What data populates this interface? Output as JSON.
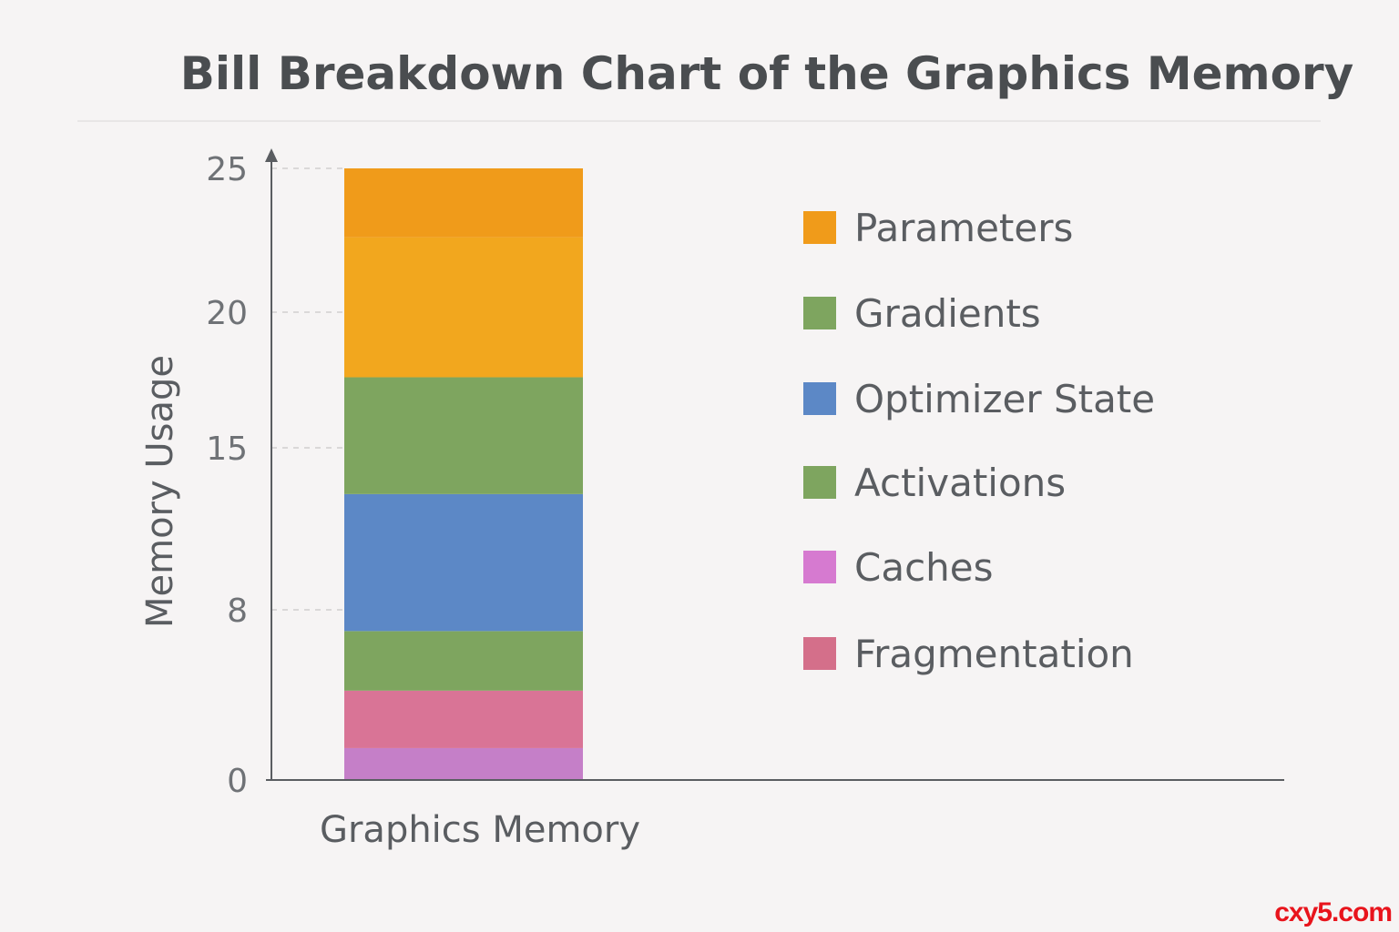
{
  "chart_data": {
    "type": "bar",
    "stacked": true,
    "title": "Bill Breakdown Chart of the Graphics Memory",
    "xlabel": "",
    "ylabel": "Memory Usage",
    "categories": [
      "Graphics Memory"
    ],
    "y_ticks": [
      "0",
      "8",
      "15",
      "20",
      "25"
    ],
    "grid": "horizontal dashed",
    "legend_position": "right",
    "segments_bottom_to_top": [
      {
        "name": "Caches",
        "from": 0,
        "to": 1.5,
        "color": "#c57fc8"
      },
      {
        "name": "Fragmentation",
        "from": 1.5,
        "to": 4.2,
        "color": "#d97496"
      },
      {
        "name": "Activations",
        "from": 4.2,
        "to": 7.0,
        "color": "#7ea55f"
      },
      {
        "name": "Optimizer State",
        "from": 7.0,
        "to": 13.0,
        "color": "#5c88c6"
      },
      {
        "name": "Gradients",
        "from": 13.0,
        "to": 17.6,
        "color": "#7ea55f"
      },
      {
        "name": "Parameters",
        "from": 17.6,
        "to": 22.6,
        "color": "#f2a71e"
      },
      {
        "name": "Parameters",
        "from": 22.6,
        "to": 25.0,
        "color": "#f09b1a"
      }
    ],
    "legend": [
      {
        "name": "Parameters",
        "color": "#f09b1a"
      },
      {
        "name": "Gradients",
        "color": "#7ea55f"
      },
      {
        "name": "Optimizer State",
        "color": "#5c88c6"
      },
      {
        "name": "Activations",
        "color": "#7ea55f"
      },
      {
        "name": "Caches",
        "color": "#d67ad0"
      },
      {
        "name": "Fragmentation",
        "color": "#d46f8a"
      }
    ]
  },
  "watermark": "cxy5.com",
  "colors": {
    "axis": "#5a5d61",
    "grid": "#d0cfcf",
    "title": "#4a4d50"
  }
}
